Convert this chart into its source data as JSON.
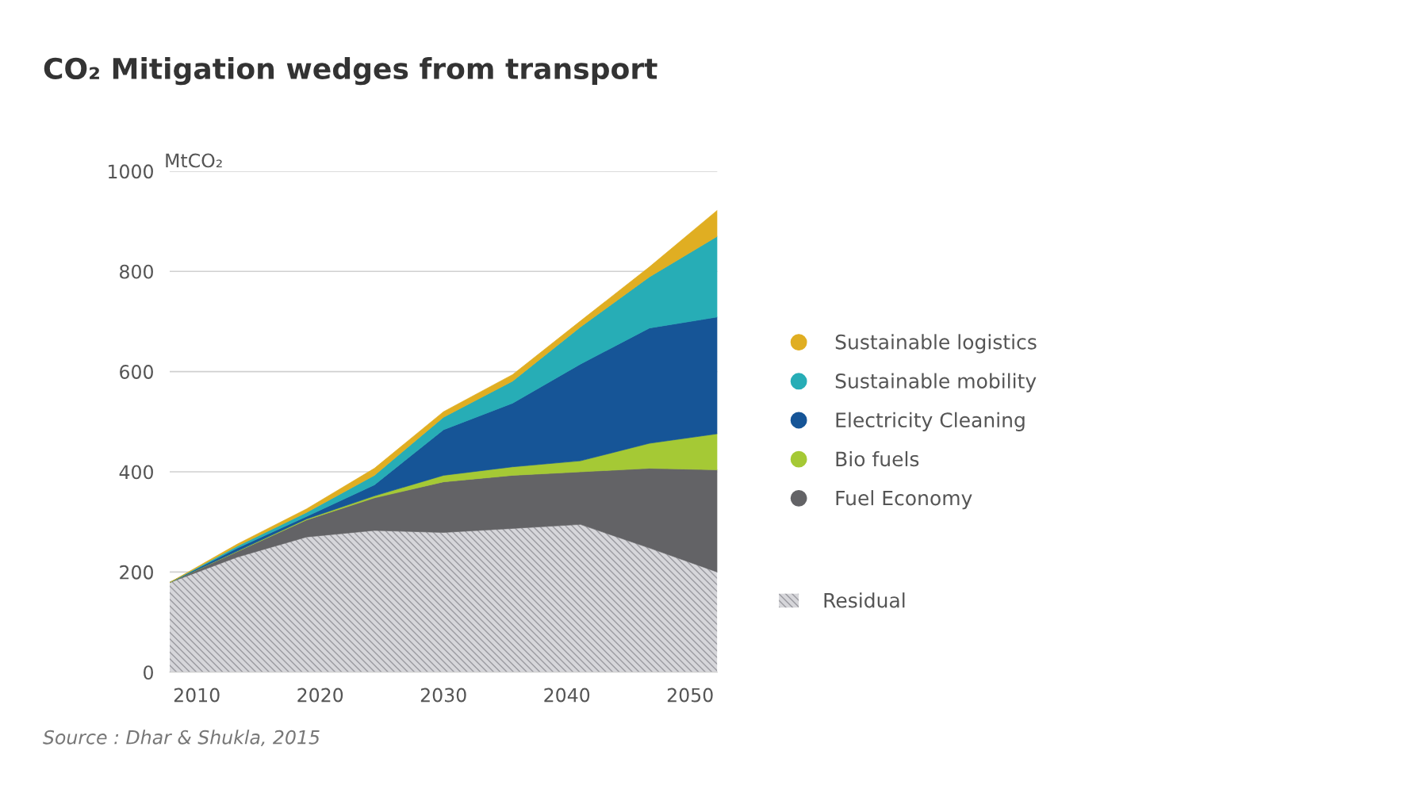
{
  "chart_data": {
    "type": "area",
    "stacked": true,
    "title": "CO₂ Mitigation wedges from transport",
    "ylabel": "MtCO₂",
    "x": [
      2007.8,
      2013.3,
      2018.9,
      2024.4,
      2030.0,
      2035.6,
      2041.1,
      2046.7,
      2052.2
    ],
    "xlim": [
      2007.8,
      2052.2
    ],
    "xticks": [
      2010,
      2020,
      2030,
      2040,
      2050
    ],
    "ylim": [
      0,
      1000
    ],
    "yticks": [
      0,
      200,
      400,
      600,
      800,
      1000
    ],
    "grid": "y",
    "legend": "right",
    "series": [
      {
        "name": "Residual",
        "color": "#d6d6da",
        "values": [
          179,
          230,
          270,
          283,
          279,
          287,
          295,
          248,
          200
        ]
      },
      {
        "name": "Fuel Economy",
        "color": "#636366",
        "values": [
          0,
          11,
          34,
          65,
          101,
          106,
          105,
          159,
          204
        ]
      },
      {
        "name": "Bio fuels",
        "color": "#a5c935",
        "values": [
          0,
          1,
          2,
          4,
          13,
          17,
          22,
          50,
          72
        ]
      },
      {
        "name": "Electricity Cleaning",
        "color": "#165597",
        "values": [
          0,
          6,
          5,
          22,
          91,
          127,
          193,
          230,
          233
        ]
      },
      {
        "name": "Sustainable mobility",
        "color": "#27adb6",
        "values": [
          0,
          4,
          8,
          19,
          25,
          44,
          74,
          102,
          161
        ]
      },
      {
        "name": "Sustainable logistics",
        "color": "#e0ae22",
        "values": [
          0,
          4,
          7,
          14,
          11,
          13,
          12,
          20,
          52
        ]
      }
    ],
    "annotations": [
      "Source : Dhar & Shukla, 2015"
    ]
  }
}
